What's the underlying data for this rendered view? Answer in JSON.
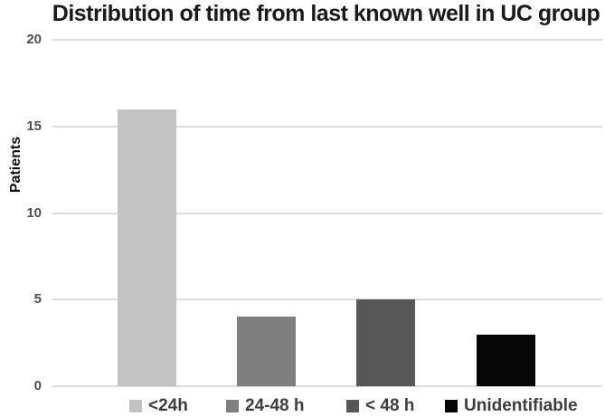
{
  "chart_data": {
    "type": "bar",
    "title": "Distribution of time from last known well in UC group",
    "xlabel": "",
    "ylabel": "Patients",
    "categories": [
      "<24h",
      "24-48 h",
      "< 48 h",
      "Unidentifiable"
    ],
    "values": [
      16,
      4,
      5,
      3
    ],
    "bar_colors": [
      "#c2c2c2",
      "#7f7f7f",
      "#575757",
      "#060606"
    ],
    "ylim": [
      0,
      20
    ],
    "yticks": [
      0,
      5,
      10,
      15,
      20
    ],
    "grid": "horizontal",
    "legend_position": "bottom",
    "legend": [
      {
        "label": "<24h",
        "color": "#c2c2c2"
      },
      {
        "label": "24-48 h",
        "color": "#7f7f7f"
      },
      {
        "label": "< 48 h",
        "color": "#575757"
      },
      {
        "label": "Unidentifiable",
        "color": "#060606"
      }
    ],
    "colors": {
      "background": "#ffffff",
      "gridline": "#dcdcdc",
      "tick_label": "#4d4d4d",
      "title": "#1a1a1a",
      "axis_label": "#111111",
      "legend_text": "#3d3d3d"
    }
  }
}
